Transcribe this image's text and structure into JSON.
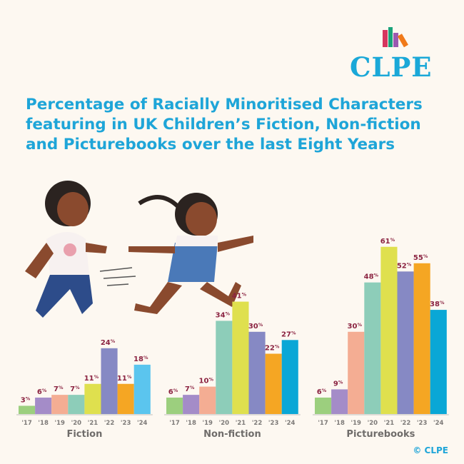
{
  "title": "Percentage of Racially Minoritised Characters featuring in UK Children’s Fiction, Non-fiction and Picturebooks over the last Eight Years",
  "logo": "CLPE",
  "copyright": "© CLPE",
  "colors": {
    "title": "#1ea5d8",
    "value_label": "#8b2341",
    "year_colors": [
      "#9ccf7e",
      "#a48cc8",
      "#f4ad93",
      "#8dcdb9",
      "#dfe04e",
      "#8689c4",
      "#f5a623",
      "#0aa7d6"
    ],
    "fiction_2024": "#5bc5ee"
  },
  "chart_data": [
    {
      "type": "bar",
      "title": "Fiction",
      "categories": [
        "'17",
        "'18",
        "'19",
        "'20",
        "'21",
        "'22",
        "'23",
        "'24"
      ],
      "values": [
        3,
        6,
        7,
        7,
        11,
        24,
        11,
        18
      ],
      "unit": "%"
    },
    {
      "type": "bar",
      "title": "Non-fiction",
      "categories": [
        "'17",
        "'18",
        "'19",
        "'20",
        "'21",
        "'22",
        "'23",
        "'24"
      ],
      "values": [
        6,
        7,
        10,
        34,
        41,
        30,
        22,
        27
      ],
      "unit": "%"
    },
    {
      "type": "bar",
      "title": "Picturebooks",
      "categories": [
        "'17",
        "'18",
        "'19",
        "'20",
        "'21",
        "'22",
        "'23",
        "'24"
      ],
      "values": [
        6,
        9,
        30,
        48,
        61,
        52,
        55,
        38
      ],
      "unit": "%"
    }
  ]
}
